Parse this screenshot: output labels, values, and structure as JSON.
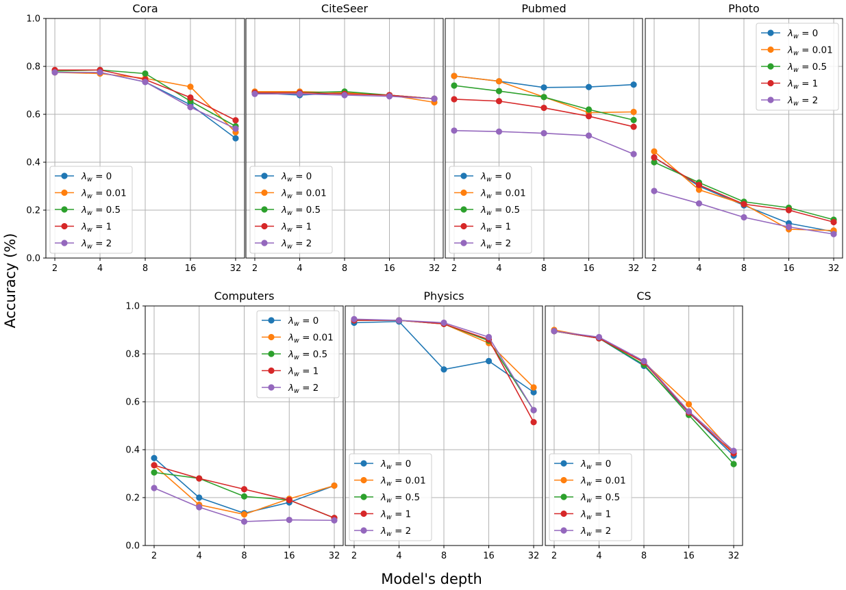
{
  "figure": {
    "ylabel": "Accuracy (%)",
    "xlabel": "Model's depth"
  },
  "legend_labels": [
    "λ_w = 0",
    "λ_w = 0.01",
    "λ_w = 0.5",
    "λ_w = 1",
    "λ_w = 2"
  ],
  "colors": {
    "series": [
      "#1f77b4",
      "#ff7f0e",
      "#2ca02c",
      "#d62728",
      "#9467bd"
    ],
    "grid": "#b0b0b0",
    "axes": "#000000"
  },
  "chart_data": [
    {
      "type": "line",
      "title": "Cora",
      "categories": [
        "2",
        "4",
        "8",
        "16",
        "32"
      ],
      "yticks": [
        "0.0",
        "0.2",
        "0.4",
        "0.6",
        "0.8",
        "1.0"
      ],
      "ylim": [
        0,
        1
      ],
      "grid": true,
      "legend_position": "lower-left",
      "series": [
        {
          "name": "λ_w = 0",
          "values": [
            0.775,
            0.775,
            0.735,
            0.64,
            0.5
          ]
        },
        {
          "name": "λ_w = 0.01",
          "values": [
            0.775,
            0.77,
            0.75,
            0.715,
            0.525
          ]
        },
        {
          "name": "λ_w = 0.5",
          "values": [
            0.78,
            0.785,
            0.77,
            0.655,
            0.55
          ]
        },
        {
          "name": "λ_w = 1",
          "values": [
            0.785,
            0.785,
            0.745,
            0.67,
            0.575
          ]
        },
        {
          "name": "λ_w = 2",
          "values": [
            0.775,
            0.775,
            0.735,
            0.63,
            0.54
          ]
        }
      ]
    },
    {
      "type": "line",
      "title": "CiteSeer",
      "categories": [
        "2",
        "4",
        "8",
        "16",
        "32"
      ],
      "ylim": [
        0,
        1
      ],
      "grid": true,
      "legend_position": "lower-left",
      "series": [
        {
          "name": "λ_w = 0",
          "values": [
            0.69,
            0.68,
            0.69,
            0.68,
            0.665
          ]
        },
        {
          "name": "λ_w = 0.01",
          "values": [
            0.695,
            0.695,
            0.69,
            0.68,
            0.65
          ]
        },
        {
          "name": "λ_w = 0.5",
          "values": [
            0.69,
            0.69,
            0.695,
            0.68,
            0.665
          ]
        },
        {
          "name": "λ_w = 1",
          "values": [
            0.69,
            0.69,
            0.685,
            0.68,
            0.665
          ]
        },
        {
          "name": "λ_w = 2",
          "values": [
            0.685,
            0.685,
            0.68,
            0.675,
            0.665
          ]
        }
      ]
    },
    {
      "type": "line",
      "title": "Pubmed",
      "categories": [
        "2",
        "4",
        "8",
        "16",
        "32"
      ],
      "ylim": [
        0,
        1
      ],
      "grid": true,
      "legend_position": "lower-left",
      "series": [
        {
          "name": "λ_w = 0",
          "values": [
            0.76,
            0.738,
            0.712,
            0.714,
            0.724
          ]
        },
        {
          "name": "λ_w = 0.01",
          "values": [
            0.76,
            0.738,
            0.672,
            0.607,
            0.61
          ]
        },
        {
          "name": "λ_w = 0.5",
          "values": [
            0.72,
            0.697,
            0.672,
            0.62,
            0.576
          ]
        },
        {
          "name": "λ_w = 1",
          "values": [
            0.663,
            0.655,
            0.627,
            0.592,
            0.548
          ]
        },
        {
          "name": "λ_w = 2",
          "values": [
            0.532,
            0.528,
            0.521,
            0.511,
            0.434
          ]
        }
      ]
    },
    {
      "type": "line",
      "title": "Photo",
      "categories": [
        "2",
        "4",
        "8",
        "16",
        "32"
      ],
      "ylim": [
        0,
        1
      ],
      "grid": true,
      "legend_position": "upper-right",
      "series": [
        {
          "name": "λ_w = 0",
          "values": [
            0.42,
            0.3,
            0.22,
            0.145,
            0.11
          ]
        },
        {
          "name": "λ_w = 0.01",
          "values": [
            0.445,
            0.285,
            0.225,
            0.12,
            0.115
          ]
        },
        {
          "name": "λ_w = 0.5",
          "values": [
            0.4,
            0.315,
            0.235,
            0.21,
            0.16
          ]
        },
        {
          "name": "λ_w = 1",
          "values": [
            0.42,
            0.305,
            0.225,
            0.2,
            0.15
          ]
        },
        {
          "name": "λ_w = 2",
          "values": [
            0.28,
            0.228,
            0.17,
            0.13,
            0.1
          ]
        }
      ]
    },
    {
      "type": "line",
      "title": "Computers",
      "categories": [
        "2",
        "4",
        "8",
        "16",
        "32"
      ],
      "yticks": [
        "0.0",
        "0.2",
        "0.4",
        "0.6",
        "0.8",
        "1.0"
      ],
      "ylim": [
        0,
        1
      ],
      "grid": true,
      "legend_position": "upper-right",
      "series": [
        {
          "name": "λ_w = 0",
          "values": [
            0.365,
            0.2,
            0.135,
            0.18,
            0.25
          ]
        },
        {
          "name": "λ_w = 0.01",
          "values": [
            0.335,
            0.17,
            0.13,
            0.195,
            0.25
          ]
        },
        {
          "name": "λ_w = 0.5",
          "values": [
            0.305,
            0.28,
            0.205,
            0.19,
            0.115
          ]
        },
        {
          "name": "λ_w = 1",
          "values": [
            0.335,
            0.28,
            0.235,
            0.19,
            0.115
          ]
        },
        {
          "name": "λ_w = 2",
          "values": [
            0.24,
            0.16,
            0.1,
            0.107,
            0.105
          ]
        }
      ]
    },
    {
      "type": "line",
      "title": "Physics",
      "categories": [
        "2",
        "4",
        "8",
        "16",
        "32"
      ],
      "ylim": [
        0,
        1
      ],
      "grid": true,
      "legend_position": "lower-left",
      "series": [
        {
          "name": "λ_w = 0",
          "values": [
            0.93,
            0.935,
            0.735,
            0.77,
            0.64
          ]
        },
        {
          "name": "λ_w = 0.01",
          "values": [
            0.94,
            0.94,
            0.925,
            0.845,
            0.66
          ]
        },
        {
          "name": "λ_w = 0.5",
          "values": [
            0.94,
            0.94,
            0.925,
            0.855,
            0.565
          ]
        },
        {
          "name": "λ_w = 1",
          "values": [
            0.94,
            0.94,
            0.925,
            0.86,
            0.515
          ]
        },
        {
          "name": "λ_w = 2",
          "values": [
            0.945,
            0.94,
            0.93,
            0.87,
            0.565
          ]
        }
      ]
    },
    {
      "type": "line",
      "title": "CS",
      "categories": [
        "2",
        "4",
        "8",
        "16",
        "32"
      ],
      "ylim": [
        0,
        1
      ],
      "grid": true,
      "legend_position": "lower-left",
      "series": [
        {
          "name": "λ_w = 0",
          "values": [
            0.895,
            0.865,
            0.75,
            0.555,
            0.375
          ]
        },
        {
          "name": "λ_w = 0.01",
          "values": [
            0.9,
            0.865,
            0.765,
            0.59,
            0.385
          ]
        },
        {
          "name": "λ_w = 0.5",
          "values": [
            0.895,
            0.865,
            0.755,
            0.545,
            0.34
          ]
        },
        {
          "name": "λ_w = 1",
          "values": [
            0.895,
            0.865,
            0.765,
            0.555,
            0.385
          ]
        },
        {
          "name": "λ_w = 2",
          "values": [
            0.895,
            0.87,
            0.77,
            0.56,
            0.395
          ]
        }
      ]
    }
  ]
}
